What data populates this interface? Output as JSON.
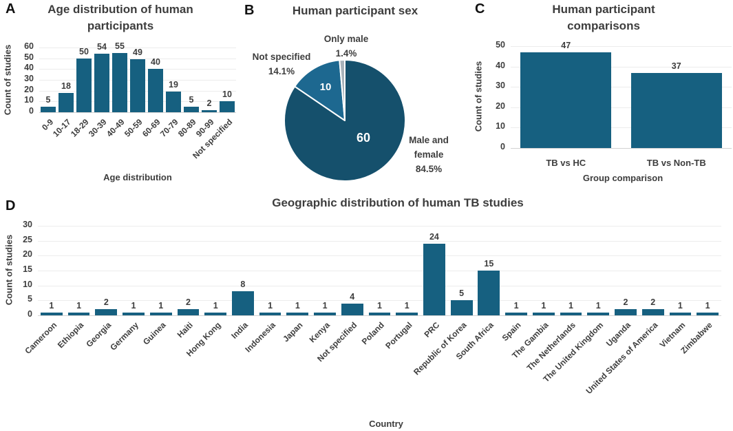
{
  "panels": [
    {
      "letter": "A"
    },
    {
      "letter": "B"
    },
    {
      "letter": "C"
    },
    {
      "letter": "D"
    }
  ],
  "colors": {
    "bar": "#166080",
    "pie_dark": "#15506C",
    "pie_light": "#1D6890",
    "pie_gray": "#A8B2BA",
    "grid": "#ECECEC",
    "axis_line": "#D2D2D2",
    "text": "#3D3D3D",
    "background": "#FFFFFF"
  },
  "chart_data": [
    {
      "type": "bar",
      "panel": "A",
      "title": "Age distribution of human participants",
      "title_lines": [
        "Age distribution of human",
        "participants"
      ],
      "xlabel": "Age distribution",
      "ylabel": "Count of studies",
      "categories": [
        "0-9",
        "10-17",
        "18-29",
        "30-39",
        "40-49",
        "50-59",
        "60-69",
        "70-79",
        "80-89",
        "90-99",
        "Not specified"
      ],
      "values": [
        5,
        18,
        50,
        54,
        55,
        49,
        40,
        19,
        5,
        2,
        10
      ],
      "ylim": [
        0,
        60
      ],
      "yticks": [
        0,
        10,
        20,
        30,
        40,
        50,
        60
      ],
      "grid": true,
      "legend": false
    },
    {
      "type": "pie",
      "panel": "B",
      "title": "Human participant sex",
      "start_angle": "top",
      "direction": "clockwise",
      "slices": [
        {
          "label": "Male and female",
          "label_lines": [
            "Male and",
            "female"
          ],
          "pct": 84.5,
          "pct_label": "84.5%",
          "value": 60,
          "color": "#15506C"
        },
        {
          "label": "Not specified",
          "pct": 14.1,
          "pct_label": "14.1%",
          "value": 10,
          "color": "#1D6890"
        },
        {
          "label": "Only male",
          "pct": 1.4,
          "pct_label": "1.4%",
          "color": "#A8B2BA"
        }
      ]
    },
    {
      "type": "bar",
      "panel": "C",
      "title": "Human participant comparisons",
      "title_lines": [
        "Human participant",
        "comparisons"
      ],
      "xlabel": "Group comparison",
      "ylabel": "Count of studies",
      "categories": [
        "TB vs HC",
        "TB vs Non-TB"
      ],
      "values": [
        47,
        37
      ],
      "ylim": [
        0,
        50
      ],
      "yticks": [
        0,
        10,
        20,
        30,
        40,
        50
      ],
      "grid": true,
      "legend": false
    },
    {
      "type": "bar",
      "panel": "D",
      "title": "Geographic distribution of human TB studies",
      "title_lines": [
        "Geographic distribution of human TB studies"
      ],
      "xlabel": "Country",
      "ylabel": "Count of studies",
      "categories": [
        "Cameroon",
        "Ethiopia",
        "Georgia",
        "Germany",
        "Guinea",
        "Haiti",
        "Hong Kong",
        "India",
        "Indonesia",
        "Japan",
        "Kenya",
        "Not specified",
        "Poland",
        "Portugal",
        "PRC",
        "Republic of Korea",
        "South Africa",
        "Spain",
        "The Gambia",
        "The Netherlands",
        "The United Kingdom",
        "Uganda",
        "United States of America",
        "Vietnam",
        "Zimbabwe"
      ],
      "values": [
        1,
        1,
        2,
        1,
        1,
        2,
        1,
        8,
        1,
        1,
        1,
        4,
        1,
        1,
        24,
        5,
        15,
        1,
        1,
        1,
        1,
        2,
        2,
        1,
        1
      ],
      "ylim": [
        0,
        30
      ],
      "yticks": [
        0,
        5,
        10,
        15,
        20,
        25,
        30
      ],
      "grid": true,
      "legend": false
    }
  ]
}
